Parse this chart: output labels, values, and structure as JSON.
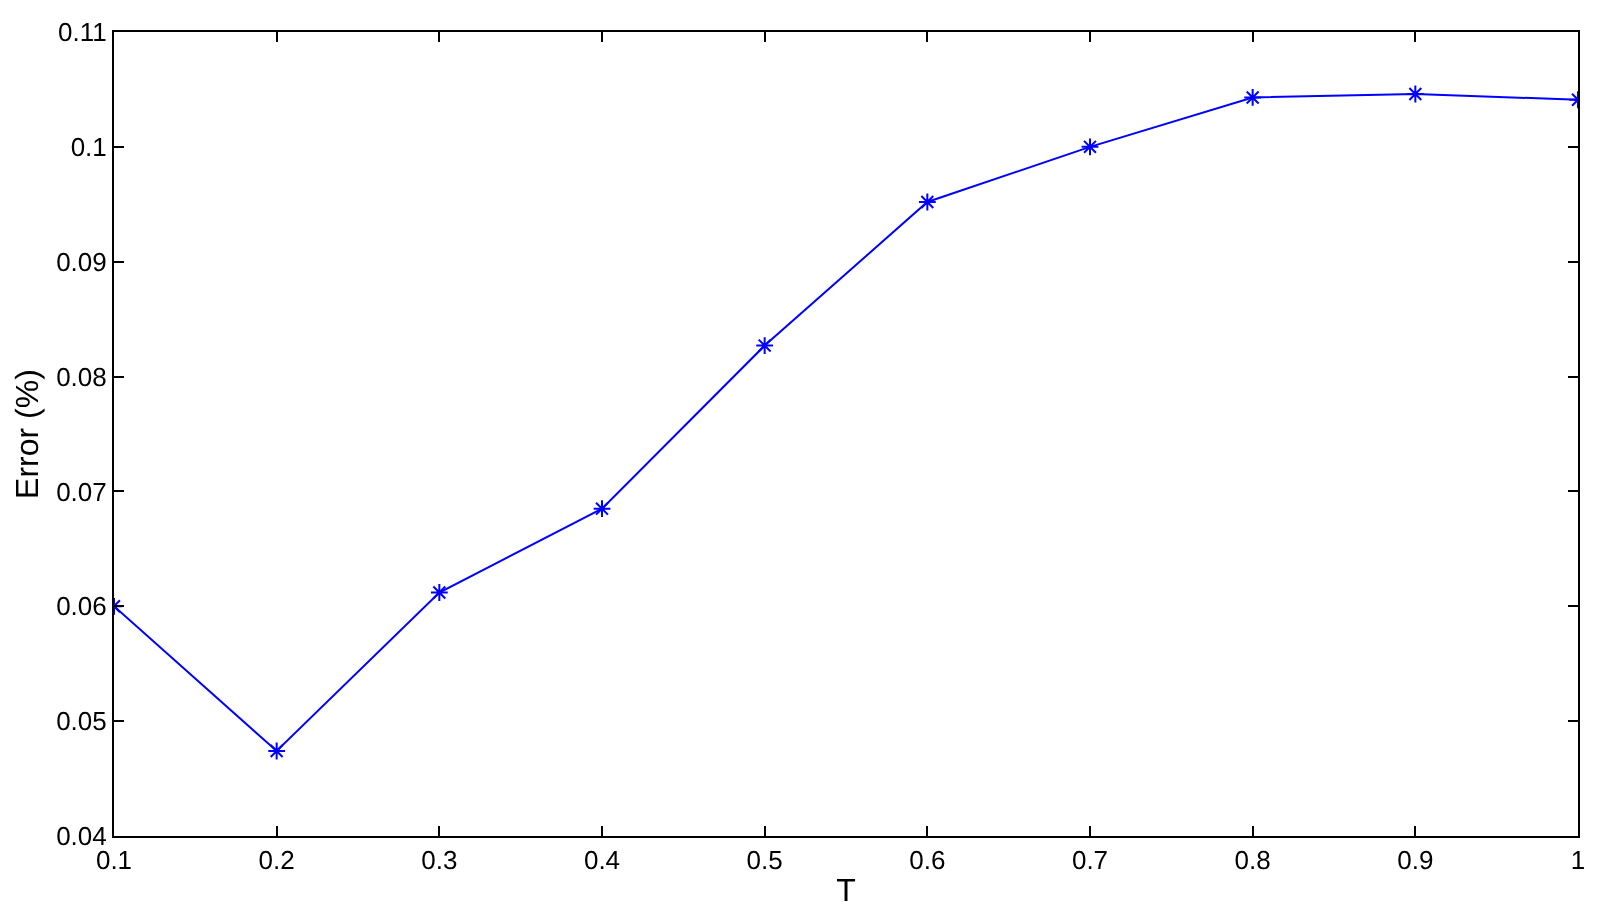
{
  "chart_data": {
    "type": "line",
    "xlabel": "T",
    "ylabel": "Error (%)",
    "x": [
      0.1,
      0.2,
      0.3,
      0.4,
      0.5,
      0.6,
      0.7,
      0.8,
      0.9,
      1.0
    ],
    "series": [
      {
        "color": "#0000ff",
        "values": [
          0.06,
          0.0474,
          0.0612,
          0.0685,
          0.0827,
          0.0952,
          0.1,
          0.1043,
          0.1046,
          0.1041
        ]
      }
    ],
    "xlim": [
      0.1,
      1
    ],
    "xticks": [
      0.1,
      0.2,
      0.3,
      0.4,
      0.5,
      0.6,
      0.7,
      0.8,
      0.9,
      1
    ],
    "ylim": [
      0.04,
      0.11
    ],
    "yticks": [
      0.04,
      0.05,
      0.06,
      0.07,
      0.08,
      0.09,
      0.1,
      0.11
    ],
    "grid": false,
    "legend": false,
    "marker": "cross",
    "line_style": "solid"
  }
}
